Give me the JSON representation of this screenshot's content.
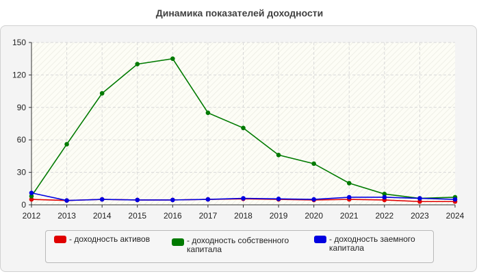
{
  "chart_data": {
    "type": "line",
    "title": "Динамика показателей доходности",
    "x": [
      "2012",
      "2013",
      "2014",
      "2015",
      "2016",
      "2017",
      "2018",
      "2019",
      "2020",
      "2021",
      "2022",
      "2023",
      "2024"
    ],
    "yticks": [
      "0",
      "30",
      "60",
      "90",
      "120",
      "150"
    ],
    "ylim": [
      0,
      150
    ],
    "grid": true,
    "legend_position": "bottom",
    "series": [
      {
        "name": "- доходность активов",
        "color": "#e00000",
        "values": [
          5,
          4,
          5,
          4.5,
          4.5,
          5,
          5.5,
          5,
          4.5,
          5,
          4.5,
          3,
          3
        ]
      },
      {
        "name": "- доходность собственного капитала",
        "color": "#007a00",
        "values": [
          8,
          56,
          103,
          130,
          135,
          85,
          71,
          46,
          38,
          20,
          10,
          6,
          7
        ]
      },
      {
        "name": "- доходность заемного капитала",
        "color": "#0000e0",
        "values": [
          11,
          4,
          5,
          4.5,
          4.5,
          5,
          6,
          5.5,
          5,
          7,
          7,
          6,
          5
        ]
      }
    ]
  }
}
